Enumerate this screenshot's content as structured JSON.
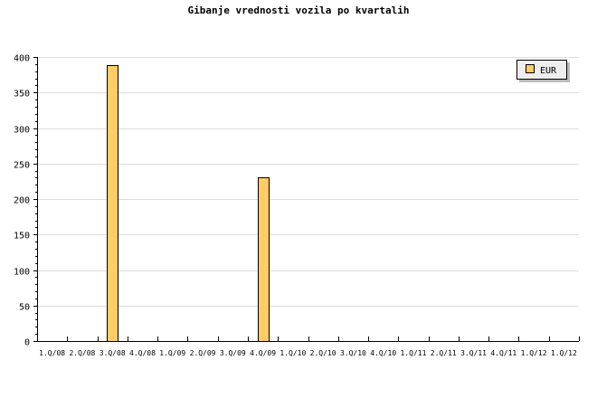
{
  "chart_data": {
    "type": "bar",
    "title": "Gibanje vrednosti vozila po kvartalih",
    "xlabel": "",
    "ylabel": "",
    "categories": [
      "1.Q/08",
      "2.Q/08",
      "3.Q/08",
      "4.Q/08",
      "1.Q/09",
      "2.Q/09",
      "3.Q/09",
      "4.Q/09",
      "1.Q/10",
      "2.Q/10",
      "3.Q/10",
      "4.Q/10",
      "1.Q/11",
      "2.Q/11",
      "3.Q/11",
      "4.Q/11",
      "1.Q/12",
      "1.Q/12"
    ],
    "series": [
      {
        "name": "EUR",
        "values": [
          0,
          0,
          389,
          0,
          0,
          0,
          0,
          230,
          0,
          0,
          0,
          0,
          0,
          0,
          0,
          0,
          0,
          0
        ]
      }
    ],
    "ylim": [
      0,
      400
    ],
    "yticks": [
      0,
      50,
      100,
      150,
      200,
      250,
      300,
      350,
      400
    ],
    "grid": true,
    "legend": "top-right",
    "colors": {
      "bar": "#ffcc66",
      "grid": "#dddddd",
      "legend_bg": "#eeeeee",
      "shadow": "#bbbbbb"
    }
  }
}
